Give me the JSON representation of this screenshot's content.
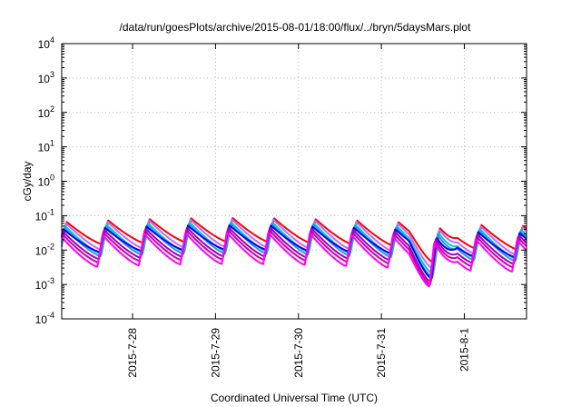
{
  "chart_data": {
    "type": "line",
    "title": "/data/run/goesPlots/archive/2015-08-01/18:00/flux/../bryn/5daysMars.plot",
    "xlabel": "Coordinated Universal Time (UTC)",
    "ylabel": "cGy/day",
    "y_scale": "log",
    "ylim": [
      0.0001,
      10000
    ],
    "y_ticks": [
      {
        "value": 0.0001,
        "base": "10",
        "exp": "-4"
      },
      {
        "value": 0.001,
        "base": "10",
        "exp": "-3"
      },
      {
        "value": 0.01,
        "base": "10",
        "exp": "-2"
      },
      {
        "value": 0.1,
        "base": "10",
        "exp": "-1"
      },
      {
        "value": 1,
        "base": "10",
        "exp": "0"
      },
      {
        "value": 10,
        "base": "10",
        "exp": "1"
      },
      {
        "value": 100,
        "base": "10",
        "exp": "2"
      },
      {
        "value": 1000,
        "base": "10",
        "exp": "3"
      },
      {
        "value": 10000,
        "base": "10",
        "exp": "4"
      }
    ],
    "xlim": [
      "2015-07-27 03:30",
      "2015-08-01 18:00"
    ],
    "x_ticks": [
      "2015-7-28",
      "2015-7-29",
      "2015-7-30",
      "2015-7-31",
      "2015-8-1"
    ],
    "grid": true,
    "legend": "none",
    "dip": {
      "time": "2015-07-31 15:00",
      "min_value": 0.0009
    },
    "series": [
      {
        "color": "#ff0000",
        "peak": 0.065,
        "trough": 0.013
      },
      {
        "color": "#cc66ff",
        "peak": 0.06,
        "trough": 0.009
      },
      {
        "color": "#00cccc",
        "peak": 0.05,
        "trough": 0.007
      },
      {
        "color": "#3399cc",
        "peak": 0.045,
        "trough": 0.006
      },
      {
        "color": "#0000ff",
        "peak": 0.04,
        "trough": 0.008
      },
      {
        "color": "#9900cc",
        "peak": 0.035,
        "trough": 0.005
      },
      {
        "color": "#cc0099",
        "peak": 0.03,
        "trough": 0.004
      },
      {
        "color": "#ff00ff",
        "peak": 0.025,
        "trough": 0.003
      }
    ]
  }
}
